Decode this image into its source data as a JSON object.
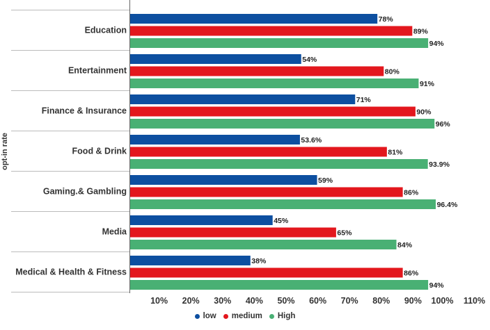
{
  "chart_data": {
    "type": "bar",
    "orientation": "horizontal",
    "ylabel": "opt-in rate",
    "xlim": [
      0,
      110
    ],
    "x_ticks": [
      "10%",
      "20%",
      "30%",
      "40%",
      "50%",
      "60%",
      "70%",
      "80%",
      "90%",
      "100%",
      "110%"
    ],
    "grid": false,
    "legend_position": "bottom",
    "categories": [
      "Education",
      "Entertainment",
      "Finance & Insurance",
      "Food & Drink",
      "Gaming.& Gambling",
      "Media",
      "Medical & Health & Fitness"
    ],
    "series": [
      {
        "name": "low",
        "color": "#0d4fa0",
        "values": [
          78,
          54,
          71,
          53.6,
          59,
          45,
          38
        ],
        "labels": [
          "78%",
          "54%",
          "71%",
          "53.6%",
          "59%",
          "45%",
          "38%"
        ]
      },
      {
        "name": "medium",
        "color": "#e3171d",
        "values": [
          89,
          80,
          90,
          81,
          86,
          65,
          86
        ],
        "labels": [
          "89%",
          "80%",
          "90%",
          "81%",
          "86%",
          "65%",
          "86%"
        ]
      },
      {
        "name": "High",
        "color": "#49b074",
        "values": [
          94,
          91,
          96,
          93.9,
          96.4,
          84,
          94
        ],
        "labels": [
          "94%",
          "91%",
          "96%",
          "93.9%",
          "96.4%",
          "84%",
          "94%"
        ]
      }
    ]
  }
}
